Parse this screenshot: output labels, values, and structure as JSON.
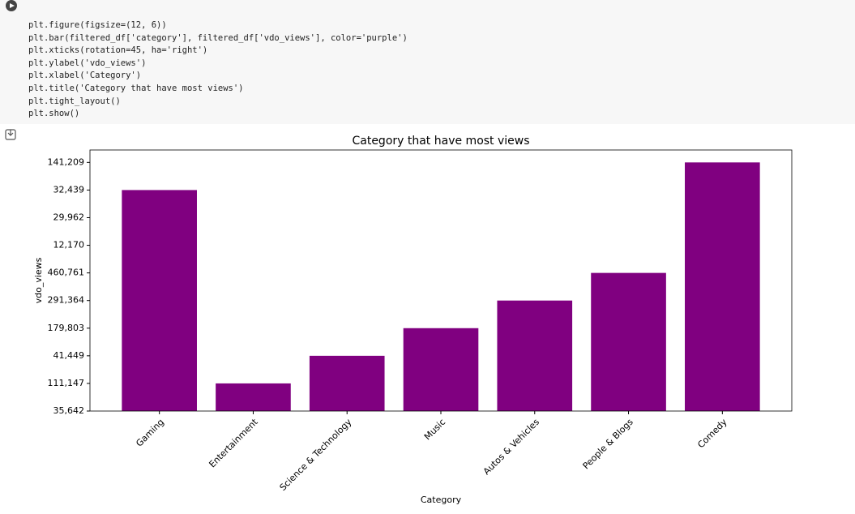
{
  "code": {
    "lines": [
      "plt.figure(figsize=(12, 6))",
      "plt.bar(filtered_df['category'], filtered_df['vdo_views'], color='purple')",
      "plt.xticks(rotation=45, ha='right')",
      "plt.ylabel('vdo_views')",
      "plt.xlabel('Category')",
      "plt.title('Category that have most views')",
      "plt.tight_layout()",
      "plt.show()"
    ]
  },
  "chart_data": {
    "type": "bar",
    "title": "Category that have most views",
    "xlabel": "Category",
    "ylabel": "vdo_views",
    "categories": [
      "Gaming",
      "Entertainment",
      "Science & Technology",
      "Music",
      "Autos & Vehicles",
      "People & Blogs",
      "Comedy"
    ],
    "values": [
      8,
      1,
      2,
      3,
      4,
      5,
      9
    ],
    "value_labels": [
      "32,439",
      "111,147",
      "41,449",
      "179,803",
      "291,364",
      "460,761",
      "141,209"
    ],
    "color": "#800080",
    "ylim": [
      0,
      9.45
    ],
    "yticks": [
      {
        "value": 0,
        "label": "35,642"
      },
      {
        "value": 1,
        "label": "111,147"
      },
      {
        "value": 2,
        "label": "41,449"
      },
      {
        "value": 3,
        "label": "179,803"
      },
      {
        "value": 4,
        "label": "291,364"
      },
      {
        "value": 5,
        "label": "460,761"
      },
      {
        "value": 6,
        "label": "12,170"
      },
      {
        "value": 7,
        "label": "29,962"
      },
      {
        "value": 8,
        "label": "32,439"
      },
      {
        "value": 9,
        "label": "141,209"
      }
    ]
  }
}
